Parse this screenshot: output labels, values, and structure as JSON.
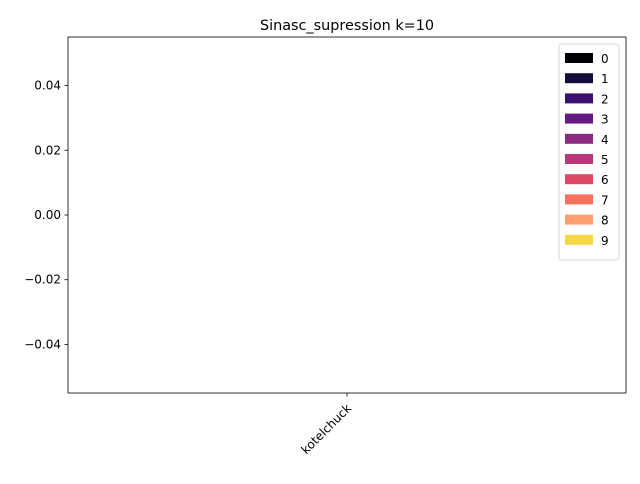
{
  "chart_data": {
    "type": "bar",
    "title": "Sinasc_supression k=10",
    "xlabel": "",
    "ylabel": "",
    "categories": [
      "kotelchuck"
    ],
    "series": [
      {
        "name": "0",
        "values": [
          0
        ],
        "color": "#000004"
      },
      {
        "name": "1",
        "values": [
          0
        ],
        "color": "#140e36"
      },
      {
        "name": "2",
        "values": [
          0
        ],
        "color": "#3b0f70"
      },
      {
        "name": "3",
        "values": [
          0
        ],
        "color": "#641a80"
      },
      {
        "name": "4",
        "values": [
          0
        ],
        "color": "#8c2981"
      },
      {
        "name": "5",
        "values": [
          0
        ],
        "color": "#b73779"
      },
      {
        "name": "6",
        "values": [
          0
        ],
        "color": "#de4968"
      },
      {
        "name": "7",
        "values": [
          0
        ],
        "color": "#f7705c"
      },
      {
        "name": "8",
        "values": [
          0
        ],
        "color": "#fe9f6d"
      },
      {
        "name": "9",
        "values": [
          0
        ],
        "color": "#f6d746"
      }
    ],
    "ylim": [
      -0.055,
      0.055
    ],
    "yticks": [
      0.04,
      0.02,
      0.0,
      -0.02,
      -0.04
    ],
    "ytick_labels": [
      "0.04",
      "0.02",
      "0.00",
      "−0.02",
      "−0.04"
    ],
    "xtick_rotation": "45",
    "grid": false,
    "legend_position": "top-right"
  }
}
